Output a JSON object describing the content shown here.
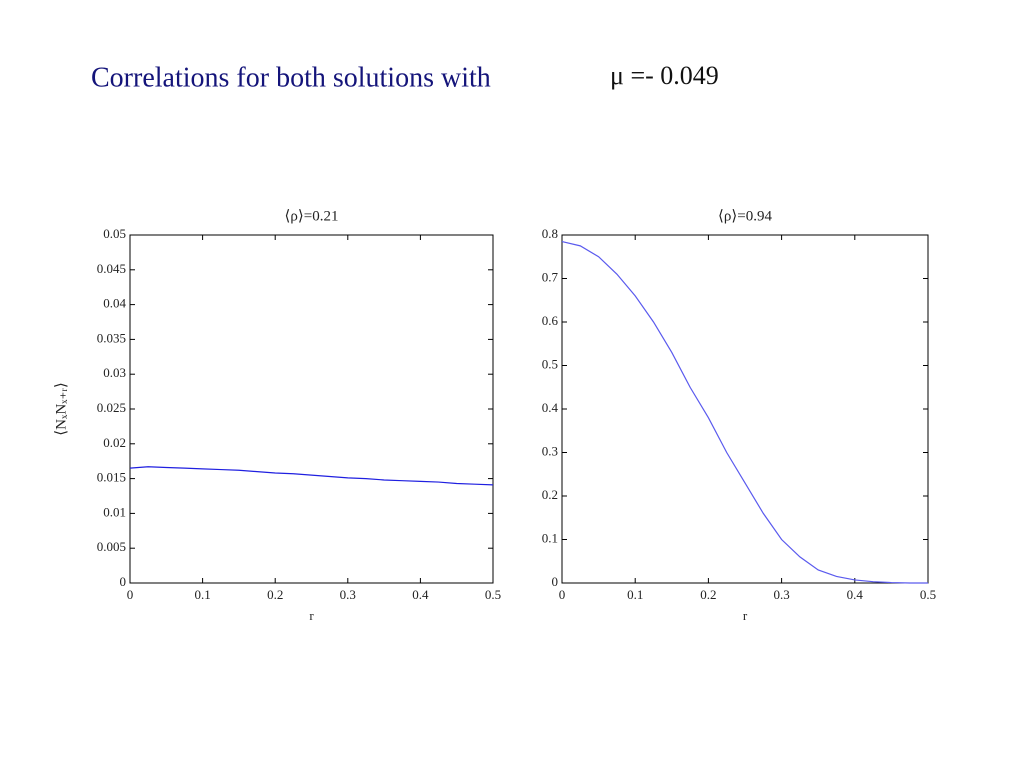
{
  "title": "Correlations for both solutions with",
  "equation": "μ =- 0.049",
  "chart_data": [
    {
      "type": "line",
      "title": "⟨ρ⟩=0.21",
      "xlabel": "r",
      "ylabel": "⟨NₓNₓ₊ᵣ⟩",
      "x": [
        0,
        0.025,
        0.05,
        0.075,
        0.1,
        0.125,
        0.15,
        0.175,
        0.2,
        0.225,
        0.25,
        0.275,
        0.3,
        0.325,
        0.35,
        0.375,
        0.4,
        0.425,
        0.45,
        0.475,
        0.5
      ],
      "series": [
        {
          "color": "#1f1fe0",
          "values": [
            0.0165,
            0.0167,
            0.0166,
            0.0165,
            0.0164,
            0.0163,
            0.0162,
            0.016,
            0.0158,
            0.0157,
            0.0155,
            0.0153,
            0.0151,
            0.015,
            0.0148,
            0.0147,
            0.0146,
            0.0145,
            0.0143,
            0.0142,
            0.0141
          ]
        }
      ],
      "xlim": [
        0,
        0.5
      ],
      "xticks": [
        0,
        0.1,
        0.2,
        0.3,
        0.4,
        0.5
      ],
      "ylim": [
        0,
        0.05
      ],
      "yticks": [
        0,
        0.005,
        0.01,
        0.015,
        0.02,
        0.025,
        0.03,
        0.035,
        0.04,
        0.045,
        0.05
      ]
    },
    {
      "type": "line",
      "title": "⟨ρ⟩=0.94",
      "xlabel": "r",
      "x": [
        0,
        0.025,
        0.05,
        0.075,
        0.1,
        0.125,
        0.15,
        0.175,
        0.2,
        0.225,
        0.25,
        0.275,
        0.3,
        0.325,
        0.35,
        0.375,
        0.4,
        0.425,
        0.45,
        0.475,
        0.5
      ],
      "series": [
        {
          "color": "#5a5aee",
          "values": [
            0.785,
            0.775,
            0.75,
            0.71,
            0.66,
            0.6,
            0.53,
            0.45,
            0.38,
            0.3,
            0.23,
            0.16,
            0.1,
            0.06,
            0.03,
            0.015,
            0.007,
            0.003,
            0.001,
            0,
            0
          ]
        }
      ],
      "xlim": [
        0,
        0.5
      ],
      "xticks": [
        0,
        0.1,
        0.2,
        0.3,
        0.4,
        0.5
      ],
      "ylim": [
        0,
        0.8
      ],
      "yticks": [
        0,
        0.1,
        0.2,
        0.3,
        0.4,
        0.5,
        0.6,
        0.7,
        0.8
      ]
    }
  ]
}
